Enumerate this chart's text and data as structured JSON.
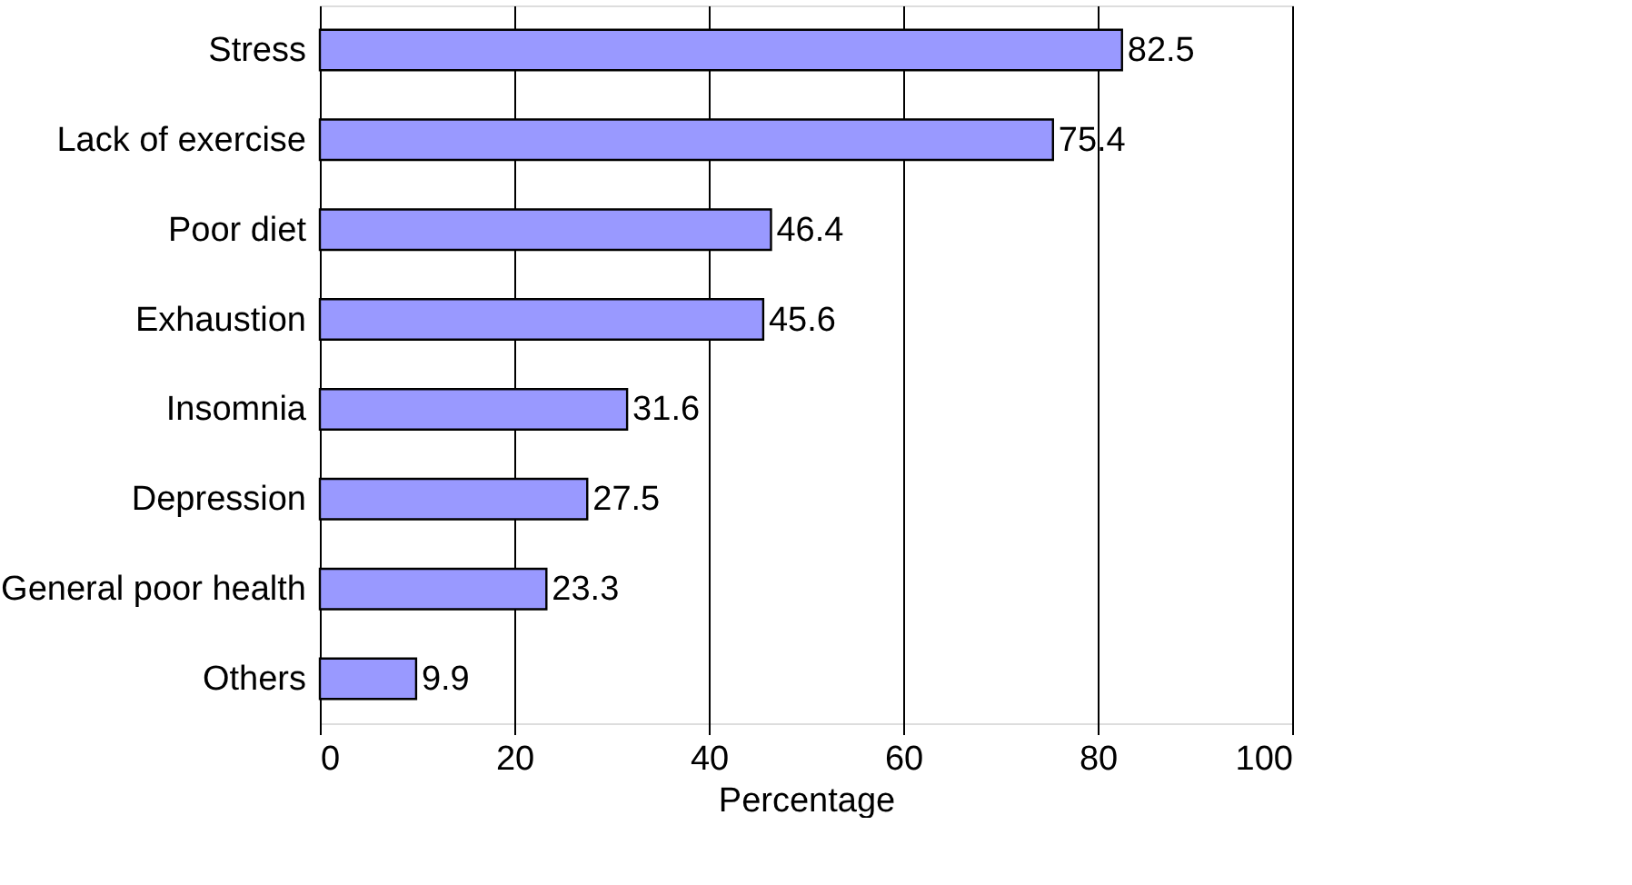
{
  "chart_data": {
    "type": "bar",
    "orientation": "horizontal",
    "xlabel": "Percentage",
    "categories": [
      "Stress",
      "Lack of exercise",
      "Poor diet",
      "Exhaustion",
      "Insomnia",
      "Depression",
      "General poor health",
      "Others"
    ],
    "values": [
      82.5,
      75.4,
      46.4,
      45.6,
      31.6,
      27.5,
      23.3,
      9.9
    ],
    "color": "#9999ff",
    "xlim": [
      0,
      100
    ],
    "xticks": [
      0,
      20,
      40,
      60,
      80,
      100
    ],
    "grid": "x",
    "data_labels": true
  }
}
